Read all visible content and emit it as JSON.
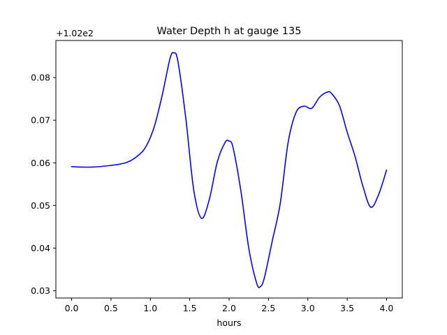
{
  "chart_data": {
    "type": "line",
    "title": "Water Depth h at gauge 135",
    "xlabel": "hours",
    "ylabel": "",
    "offset_text": "+1.02e2",
    "x_ticks": [
      "0.0",
      "0.5",
      "1.0",
      "1.5",
      "2.0",
      "2.5",
      "3.0",
      "3.5",
      "4.0"
    ],
    "y_ticks": [
      "0.03",
      "0.04",
      "0.05",
      "0.06",
      "0.07",
      "0.08"
    ],
    "xlim": [
      -0.2,
      4.2
    ],
    "ylim": [
      0.0283,
      0.0887
    ],
    "grid": false,
    "series": [
      {
        "color": "#0000ff",
        "x": [
          0.0,
          0.25,
          0.5,
          0.7,
          0.85,
          0.95,
          1.05,
          1.15,
          1.25,
          1.3,
          1.35,
          1.45,
          1.55,
          1.65,
          1.75,
          1.85,
          1.95,
          2.0,
          2.05,
          2.15,
          2.25,
          2.35,
          2.4,
          2.45,
          2.55,
          2.65,
          2.75,
          2.85,
          2.95,
          3.05,
          3.15,
          3.25,
          3.3,
          3.4,
          3.5,
          3.6,
          3.7,
          3.8,
          3.9,
          4.0
        ],
        "y": [
          0.0591,
          0.059,
          0.0594,
          0.0601,
          0.0618,
          0.064,
          0.0685,
          0.0758,
          0.0845,
          0.0858,
          0.0838,
          0.0705,
          0.0538,
          0.047,
          0.0515,
          0.0602,
          0.0648,
          0.0651,
          0.0636,
          0.0534,
          0.04,
          0.0318,
          0.031,
          0.0332,
          0.0418,
          0.0505,
          0.0648,
          0.0718,
          0.0733,
          0.0728,
          0.0754,
          0.0766,
          0.0763,
          0.0735,
          0.0672,
          0.0615,
          0.0545,
          0.0496,
          0.0526,
          0.0583
        ]
      }
    ]
  }
}
